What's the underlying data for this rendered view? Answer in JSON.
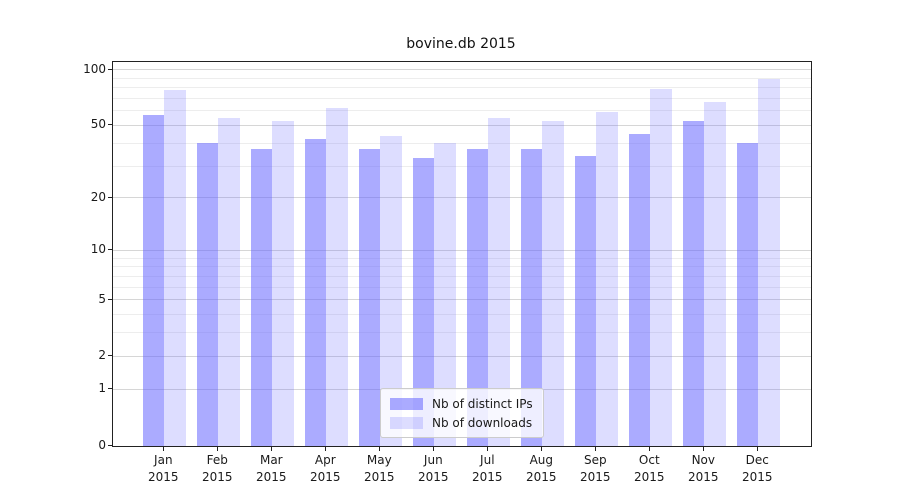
{
  "figure": {
    "background": "#ffffff"
  },
  "chart_data": {
    "type": "bar",
    "title": "bovine.db 2015",
    "categories": [
      "Jan 2015",
      "Feb 2015",
      "Mar 2015",
      "Apr 2015",
      "May 2015",
      "Jun 2015",
      "Jul 2015",
      "Aug 2015",
      "Sep 2015",
      "Oct 2015",
      "Nov 2015",
      "Dec 2015"
    ],
    "series": [
      {
        "name": "Nb of distinct IPs",
        "color": "rgba(102,102,255,0.55)",
        "values": [
          57,
          40,
          37,
          42,
          37,
          33,
          37,
          37,
          34,
          45,
          53,
          40
        ]
      },
      {
        "name": "Nb of downloads",
        "color": "rgba(102,102,255,0.22)",
        "values": [
          78,
          55,
          53,
          62,
          44,
          40,
          55,
          53,
          59,
          79,
          67,
          89
        ]
      }
    ],
    "xlabel": "",
    "ylabel": "",
    "yscale": "log1p",
    "ylim": [
      0,
      110
    ],
    "yticks_major": [
      0,
      1,
      2,
      5,
      10,
      20,
      50,
      100
    ],
    "yticks_minor": [
      3,
      4,
      6,
      7,
      8,
      9,
      30,
      40,
      60,
      70,
      80,
      90
    ],
    "grid": true,
    "legend_position": "lower center inside plot",
    "colors": {
      "grid_major": "#d6d6d6",
      "grid_minor": "#ededed",
      "spine": "#222222",
      "text": "#1a1a1a"
    }
  }
}
